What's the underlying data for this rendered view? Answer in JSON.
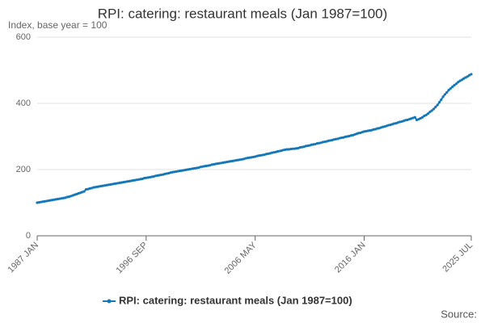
{
  "chart_data": {
    "type": "line",
    "title": "RPI: catering: restaurant meals (Jan 1987=100)",
    "subtitle": "Index, base year = 100",
    "source": "Source:",
    "categories": [
      "1987 JAN",
      null,
      null,
      null,
      null,
      null,
      null,
      null,
      null,
      null,
      null,
      null,
      null,
      null,
      null,
      null,
      null,
      null,
      null,
      null,
      null,
      null,
      null,
      null,
      null,
      null,
      null,
      null,
      null,
      null,
      null,
      null,
      null,
      null,
      null,
      null,
      null,
      null,
      null,
      null,
      null,
      null,
      null,
      null,
      null,
      null,
      null,
      null,
      null,
      null,
      null,
      null,
      null,
      null,
      null,
      null,
      null,
      null,
      "1996 SEP",
      null,
      null,
      null,
      null,
      null,
      null,
      null,
      null,
      null,
      null,
      null,
      null,
      null,
      null,
      null,
      null,
      null,
      null,
      null,
      null,
      null,
      null,
      null,
      null,
      null,
      null,
      null,
      null,
      null,
      null,
      null,
      null,
      null,
      null,
      null,
      null,
      null,
      null,
      null,
      null,
      null,
      null,
      null,
      null,
      null,
      null,
      null,
      null,
      null,
      null,
      null,
      null,
      null,
      null,
      null,
      null,
      null,
      "2006 MAY",
      null,
      null,
      null,
      null,
      null,
      null,
      null,
      null,
      null,
      null,
      null,
      null,
      null,
      null,
      null,
      null,
      null,
      null,
      null,
      null,
      null,
      null,
      null,
      null,
      null,
      null,
      null,
      null,
      null,
      null,
      null,
      null,
      null,
      null,
      null,
      null,
      null,
      null,
      null,
      null,
      null,
      null,
      null,
      null,
      null,
      null,
      null,
      null,
      null,
      null,
      null,
      null,
      null,
      null,
      null,
      null,
      null,
      "2016 JAN",
      null,
      null,
      null,
      null,
      null,
      null,
      null,
      null,
      null,
      null,
      null,
      null,
      null,
      null,
      null,
      null,
      null,
      null,
      null,
      null,
      null,
      null,
      null,
      null,
      null,
      null,
      null,
      null,
      null,
      null,
      null,
      null,
      null,
      null,
      null,
      null,
      null,
      null,
      null,
      null,
      null,
      null,
      null,
      null,
      null,
      null,
      null,
      null,
      null,
      null,
      null,
      null,
      null,
      null,
      null,
      null,
      "2025 JUL"
    ],
    "series": [
      {
        "name": "RPI: catering: restaurant meals (Jan 1987=100)",
        "color": "#1478b8",
        "values": [
          100,
          101,
          102,
          103,
          104,
          105,
          106,
          107,
          108,
          109,
          110,
          111,
          112,
          113,
          114,
          115,
          117,
          118,
          120,
          122,
          124,
          126,
          128,
          130,
          132,
          134,
          140,
          141,
          143,
          144,
          146,
          147,
          148,
          149,
          150,
          151,
          152,
          153,
          154,
          155,
          156,
          157,
          158,
          159,
          160,
          161,
          162,
          163,
          164,
          165,
          166,
          167,
          168,
          169,
          170,
          171,
          172,
          174,
          175,
          176,
          177,
          178,
          179,
          181,
          182,
          183,
          184,
          185,
          187,
          188,
          189,
          191,
          192,
          193,
          194,
          195,
          196,
          197,
          198,
          199,
          200,
          201,
          202,
          203,
          204,
          205,
          206,
          208,
          209,
          210,
          211,
          212,
          213,
          215,
          216,
          217,
          218,
          219,
          220,
          221,
          222,
          223,
          224,
          225,
          226,
          227,
          228,
          229,
          230,
          231,
          232,
          234,
          235,
          236,
          237,
          238,
          239,
          241,
          242,
          243,
          244,
          245,
          247,
          248,
          249,
          251,
          252,
          253,
          255,
          256,
          257,
          259,
          260,
          261,
          261,
          262,
          263,
          263,
          264,
          265,
          267,
          268,
          269,
          271,
          272,
          273,
          275,
          276,
          277,
          279,
          280,
          281,
          283,
          284,
          285,
          287,
          288,
          289,
          291,
          292,
          293,
          295,
          296,
          297,
          299,
          300,
          301,
          303,
          304,
          306,
          308,
          310,
          311,
          313,
          315,
          316,
          317,
          318,
          319,
          321,
          322,
          324,
          325,
          327,
          329,
          330,
          332,
          334,
          335,
          337,
          339,
          340,
          342,
          344,
          345,
          347,
          349,
          350,
          352,
          354,
          356,
          358,
          350,
          352,
          355,
          358,
          362,
          365,
          369,
          374,
          378,
          383,
          389,
          395,
          403,
          411,
          420,
          427,
          433,
          440,
          445,
          450,
          455,
          459,
          464,
          468,
          471,
          475,
          478,
          481,
          485,
          488
        ]
      }
    ],
    "ylim": [
      0,
      600
    ],
    "yticks": [
      0,
      200,
      400,
      600
    ],
    "grid": true,
    "legend": "bottom"
  }
}
